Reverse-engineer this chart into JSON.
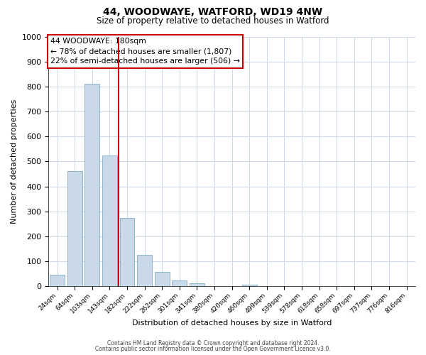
{
  "title": "44, WOODWAYE, WATFORD, WD19 4NW",
  "subtitle": "Size of property relative to detached houses in Watford",
  "xlabel": "Distribution of detached houses by size in Watford",
  "ylabel": "Number of detached properties",
  "bar_labels": [
    "24sqm",
    "64sqm",
    "103sqm",
    "143sqm",
    "182sqm",
    "222sqm",
    "262sqm",
    "301sqm",
    "341sqm",
    "380sqm",
    "420sqm",
    "460sqm",
    "499sqm",
    "539sqm",
    "578sqm",
    "618sqm",
    "658sqm",
    "697sqm",
    "737sqm",
    "776sqm",
    "816sqm"
  ],
  "bar_values": [
    47,
    460,
    810,
    525,
    275,
    125,
    57,
    25,
    12,
    0,
    0,
    7,
    0,
    0,
    0,
    0,
    0,
    0,
    0,
    0,
    0
  ],
  "bar_color": "#c9d9e8",
  "bar_edgecolor": "#7faec8",
  "vline_color": "#cc0000",
  "annotation_line1": "44 WOODWAYE: 180sqm",
  "annotation_line2": "← 78% of detached houses are smaller (1,807)",
  "annotation_line3": "22% of semi-detached houses are larger (506) →",
  "annotation_box_edgecolor": "#cc0000",
  "ylim": [
    0,
    1000
  ],
  "yticks": [
    0,
    100,
    200,
    300,
    400,
    500,
    600,
    700,
    800,
    900,
    1000
  ],
  "footer_line1": "Contains HM Land Registry data © Crown copyright and database right 2024.",
  "footer_line2": "Contains public sector information licensed under the Open Government Licence v3.0.",
  "background_color": "#ffffff",
  "grid_color": "#ccd8e8"
}
